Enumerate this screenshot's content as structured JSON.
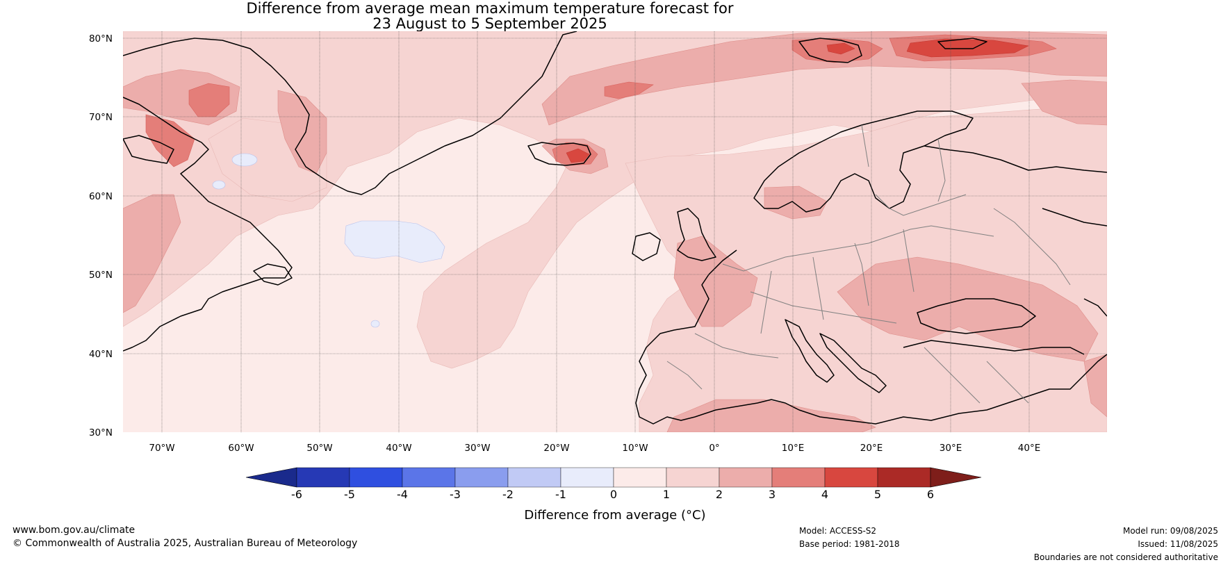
{
  "title_line1": "Difference from average mean maximum temperature forecast for",
  "title_line2": "23 August to 5 September 2025",
  "lat_labels": [
    "80°N",
    "70°N",
    "60°N",
    "50°N",
    "40°N",
    "30°N"
  ],
  "lon_labels": [
    "70°W",
    "60°W",
    "50°W",
    "40°W",
    "30°W",
    "20°W",
    "10°W",
    "0°",
    "10°E",
    "20°E",
    "30°E",
    "40°E"
  ],
  "colorbar": {
    "title": "Difference from average (°C)",
    "tick_labels": [
      "-6",
      "-5",
      "-4",
      "-3",
      "-2",
      "-1",
      "0",
      "1",
      "2",
      "3",
      "4",
      "5",
      "6"
    ],
    "colors": [
      "#1a2a8c",
      "#2639b5",
      "#2f4fe0",
      "#5b75e8",
      "#8a9dee",
      "#c1caf5",
      "#e8ecfb",
      "#fcebe9",
      "#f6d4d2",
      "#ecadab",
      "#e47e79",
      "#d8473f",
      "#ab2a26",
      "#7e1e1a"
    ]
  },
  "map_colors": {
    "background_light_warm": "#fcebe9",
    "warm_1_2": "#f6d4d2",
    "warm_2_3": "#ecadab",
    "warm_3_4": "#e47e79",
    "warm_4_5": "#d8473f",
    "cool_0_neg1": "#e8ecfb",
    "coastline": "#000000",
    "borders": "#808080"
  },
  "footer": {
    "url": "www.bom.gov.au/climate",
    "copyright": "© Commonwealth of Australia 2025, Australian Bureau of Meteorology",
    "model": "Model: ACCESS-S2",
    "base_period": "Base period: 1981-2018",
    "model_run": "Model run: 09/08/2025",
    "issued": "Issued: 11/08/2025",
    "disclaimer": "Boundaries are not considered authoritative"
  }
}
